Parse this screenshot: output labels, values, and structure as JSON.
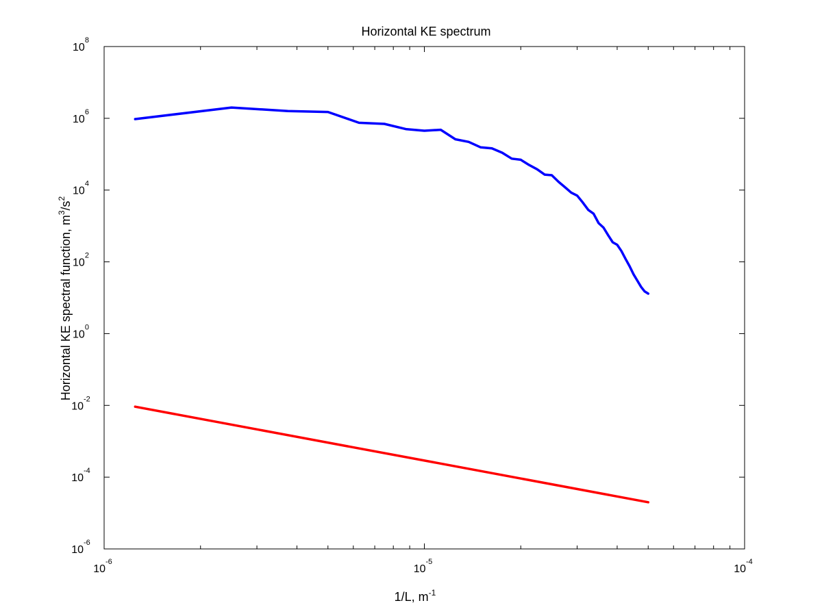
{
  "chart_data": {
    "type": "line",
    "title": "Horizontal KE spectrum",
    "xlabel": {
      "base": "1/L, m",
      "exponent": "-1"
    },
    "ylabel": {
      "base": "Horizontal KE spectral function, m",
      "exp1": "3",
      "middle": "/s",
      "exp2": "2"
    },
    "xscale": "log",
    "yscale": "log",
    "xlim": [
      1e-06,
      0.0001
    ],
    "ylim": [
      1e-06,
      100000000.0
    ],
    "grid": false,
    "x_ticks": [
      {
        "base": "10",
        "exp": "-6"
      },
      {
        "base": "10",
        "exp": "-5"
      },
      {
        "base": "10",
        "exp": "-4"
      }
    ],
    "y_ticks": [
      {
        "base": "10",
        "exp": "-6"
      },
      {
        "base": "10",
        "exp": "-4"
      },
      {
        "base": "10",
        "exp": "-2"
      },
      {
        "base": "10",
        "exp": "0"
      },
      {
        "base": "10",
        "exp": "2"
      },
      {
        "base": "10",
        "exp": "4"
      },
      {
        "base": "10",
        "exp": "6"
      },
      {
        "base": "10",
        "exp": "8"
      }
    ],
    "series": [
      {
        "color": "#0000ff",
        "x": [
          1.25e-06,
          2.5e-06,
          3.75e-06,
          5e-06,
          6.25e-06,
          7.5e-06,
          8.75e-06,
          1e-05,
          1.125e-05,
          1.25e-05,
          1.375e-05,
          1.5e-05,
          1.625e-05,
          1.75e-05,
          1.875e-05,
          2e-05,
          2.125e-05,
          2.25e-05,
          2.375e-05,
          2.5e-05,
          2.625e-05,
          2.75e-05,
          2.875e-05,
          3e-05,
          3.125e-05,
          3.25e-05,
          3.375e-05,
          3.5e-05,
          3.625e-05,
          3.75e-05,
          3.875e-05,
          4e-05,
          4.125e-05,
          4.25e-05,
          4.375e-05,
          4.5e-05,
          4.625e-05,
          4.75e-05,
          4.875e-05,
          5e-05
        ],
        "y": [
          950000.0,
          2000000.0,
          1600000.0,
          1500000.0,
          750000.0,
          700000.0,
          500000.0,
          450000.0,
          480000.0,
          260000.0,
          220000.0,
          155000.0,
          145000.0,
          110000.0,
          75000.0,
          70000.0,
          50000.0,
          38000.0,
          27000.0,
          26000.0,
          17000.0,
          12000.0,
          8500.0,
          7000.0,
          4500.0,
          2800.0,
          2200.0,
          1200.0,
          900.0,
          550.0,
          350.0,
          300.0,
          200.0,
          120.0,
          75.0,
          45.0,
          30.0,
          20.0,
          15.0,
          13.0
        ]
      },
      {
        "color": "#ff0000",
        "x": [
          1.25e-06,
          5e-05
        ],
        "y": [
          0.0092,
          2e-05
        ]
      }
    ]
  }
}
